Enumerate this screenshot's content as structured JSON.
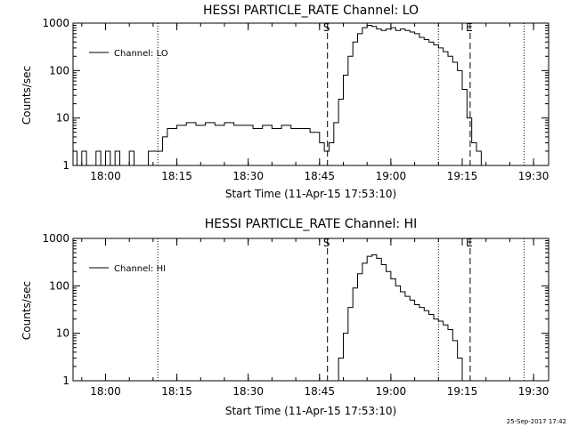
{
  "chart_data": [
    {
      "type": "line",
      "title": "HESSI PARTICLE_RATE Channel: LO",
      "xlabel": "Start Time (11-Apr-15 17:53:10)",
      "ylabel": "Counts/sec",
      "yscale": "log",
      "ylim": [
        1,
        1000
      ],
      "y_ticks": [
        "1",
        "10",
        "100",
        "1000"
      ],
      "x_range": [
        "17:53:10",
        "19:33:10"
      ],
      "x_ticks": [
        "18:00",
        "18:15",
        "18:30",
        "18:45",
        "19:00",
        "19:15",
        "19:30"
      ],
      "markers": {
        "dotted": [
          "18:11:00",
          "19:10:00",
          "19:28:00"
        ],
        "dashed": [
          {
            "time": "18:46:40",
            "label": "S"
          },
          {
            "time": "19:16:40",
            "label": "E"
          }
        ]
      },
      "legend_position": "top-left",
      "series": [
        {
          "name": "Channel: LO",
          "x": [
            "17:53:10",
            "17:54:00",
            "17:55:00",
            "17:56:00",
            "17:57:00",
            "17:58:00",
            "17:59:00",
            "18:00:00",
            "18:01:00",
            "18:02:00",
            "18:03:00",
            "18:04:00",
            "18:05:00",
            "18:06:00",
            "18:07:00",
            "18:08:00",
            "18:09:00",
            "18:10:00",
            "18:11:00",
            "18:12:00",
            "18:13:00",
            "18:15:00",
            "18:17:00",
            "18:19:00",
            "18:21:00",
            "18:23:00",
            "18:25:00",
            "18:27:00",
            "18:29:00",
            "18:31:00",
            "18:33:00",
            "18:35:00",
            "18:37:00",
            "18:39:00",
            "18:41:00",
            "18:43:00",
            "18:45:00",
            "18:46:00",
            "18:46:40",
            "18:47:00",
            "18:48:00",
            "18:49:00",
            "18:50:00",
            "18:51:00",
            "18:52:00",
            "18:53:00",
            "18:54:00",
            "18:55:00",
            "18:56:00",
            "18:57:00",
            "18:58:00",
            "18:59:00",
            "19:00:00",
            "19:01:00",
            "19:02:00",
            "19:03:00",
            "19:04:00",
            "19:05:00",
            "19:06:00",
            "19:07:00",
            "19:08:00",
            "19:09:00",
            "19:10:00",
            "19:11:00",
            "19:12:00",
            "19:13:00",
            "19:14:00",
            "19:15:00",
            "19:16:00",
            "19:17:00",
            "19:18:00",
            "19:19:00",
            "19:20:00",
            "19:21:00",
            "19:22:00",
            "19:23:00",
            "19:24:00",
            "19:25:00",
            "19:26:00",
            "19:27:00",
            "19:28:00"
          ],
          "values": [
            2,
            1,
            2,
            1,
            1,
            2,
            1,
            2,
            1,
            2,
            1,
            1,
            2,
            1,
            1,
            1,
            2,
            2,
            2,
            4,
            6,
            7,
            8,
            7,
            8,
            7,
            8,
            7,
            7,
            6,
            7,
            6,
            7,
            6,
            6,
            5,
            3,
            2,
            2,
            3,
            8,
            25,
            80,
            200,
            400,
            600,
            800,
            900,
            850,
            750,
            700,
            750,
            800,
            700,
            750,
            700,
            650,
            600,
            500,
            450,
            400,
            350,
            300,
            250,
            200,
            150,
            100,
            40,
            10,
            3,
            2,
            1,
            1,
            1,
            1,
            1,
            1,
            1,
            1,
            1,
            1
          ]
        }
      ]
    },
    {
      "type": "line",
      "title": "HESSI PARTICLE_RATE Channel: HI",
      "xlabel": "Start Time (11-Apr-15 17:53:10)",
      "ylabel": "Counts/sec",
      "yscale": "log",
      "ylim": [
        1,
        1000
      ],
      "y_ticks": [
        "1",
        "10",
        "100",
        "1000"
      ],
      "x_range": [
        "17:53:10",
        "19:33:10"
      ],
      "x_ticks": [
        "18:00",
        "18:15",
        "18:30",
        "18:45",
        "19:00",
        "19:15",
        "19:30"
      ],
      "markers": {
        "dotted": [
          "18:11:00",
          "19:10:00",
          "19:28:00"
        ],
        "dashed": [
          {
            "time": "18:46:40",
            "label": "S"
          },
          {
            "time": "19:16:40",
            "label": "E"
          }
        ]
      },
      "legend_position": "top-left",
      "series": [
        {
          "name": "Channel: HI",
          "x": [
            "18:48:00",
            "18:49:00",
            "18:50:00",
            "18:51:00",
            "18:52:00",
            "18:53:00",
            "18:54:00",
            "18:55:00",
            "18:56:00",
            "18:57:00",
            "18:58:00",
            "18:59:00",
            "19:00:00",
            "19:01:00",
            "19:02:00",
            "19:03:00",
            "19:04:00",
            "19:05:00",
            "19:06:00",
            "19:07:00",
            "19:08:00",
            "19:09:00",
            "19:10:00",
            "19:11:00",
            "19:12:00",
            "19:13:00",
            "19:14:00",
            "19:15:00"
          ],
          "values": [
            1,
            3,
            10,
            35,
            90,
            180,
            300,
            420,
            450,
            380,
            280,
            200,
            140,
            100,
            75,
            60,
            50,
            40,
            35,
            30,
            25,
            20,
            18,
            15,
            12,
            7,
            3,
            1
          ]
        }
      ]
    }
  ],
  "footer": {
    "timestamp": "25-Sep-2017 17:42"
  }
}
